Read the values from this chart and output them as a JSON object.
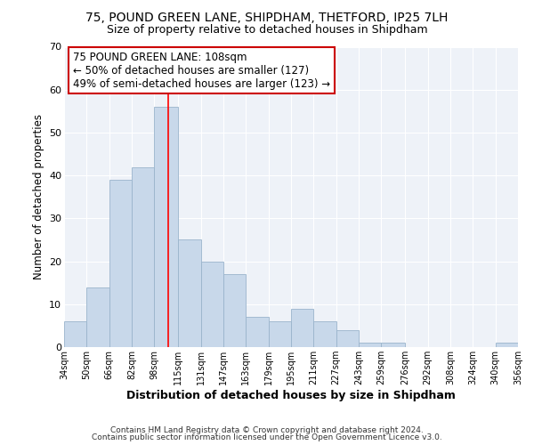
{
  "title": "75, POUND GREEN LANE, SHIPDHAM, THETFORD, IP25 7LH",
  "subtitle": "Size of property relative to detached houses in Shipdham",
  "xlabel": "Distribution of detached houses by size in Shipdham",
  "ylabel": "Number of detached properties",
  "bar_edges": [
    34,
    50,
    66,
    82,
    98,
    115,
    131,
    147,
    163,
    179,
    195,
    211,
    227,
    243,
    259,
    276,
    292,
    308,
    324,
    340,
    356
  ],
  "bar_heights": [
    6,
    14,
    39,
    42,
    56,
    25,
    20,
    17,
    7,
    6,
    9,
    6,
    4,
    1,
    1,
    0,
    0,
    0,
    0,
    1
  ],
  "bar_color": "#c8d8ea",
  "bar_edge_color": "#9ab4cc",
  "vline_x": 108,
  "vline_color": "red",
  "ylim": [
    0,
    70
  ],
  "annotation_title": "75 POUND GREEN LANE: 108sqm",
  "annotation_line1": "← 50% of detached houses are smaller (127)",
  "annotation_line2": "49% of semi-detached houses are larger (123) →",
  "annotation_box_color": "#ffffff",
  "annotation_box_edge": "#cc0000",
  "footnote1": "Contains HM Land Registry data © Crown copyright and database right 2024.",
  "footnote2": "Contains public sector information licensed under the Open Government Licence v3.0.",
  "plot_bg_color": "#eef2f8",
  "fig_bg_color": "#ffffff",
  "tick_labels": [
    "34sqm",
    "50sqm",
    "66sqm",
    "82sqm",
    "98sqm",
    "115sqm",
    "131sqm",
    "147sqm",
    "163sqm",
    "179sqm",
    "195sqm",
    "211sqm",
    "227sqm",
    "243sqm",
    "259sqm",
    "276sqm",
    "292sqm",
    "308sqm",
    "324sqm",
    "340sqm",
    "356sqm"
  ],
  "grid_color": "#ffffff",
  "yticks": [
    0,
    10,
    20,
    30,
    40,
    50,
    60,
    70
  ]
}
